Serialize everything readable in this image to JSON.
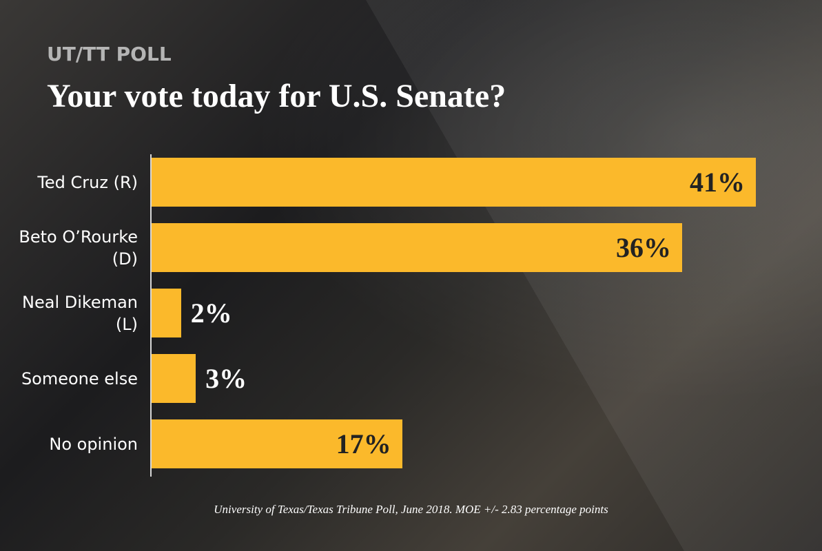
{
  "kicker": "UT/TT POLL",
  "chart_data": {
    "type": "bar",
    "orientation": "horizontal",
    "title": "Your vote today for U.S. Senate?",
    "categories": [
      "Ted Cruz (R)",
      "Beto O’Rourke (D)",
      "Neal Dikeman (L)",
      "Someone else",
      "No opinion"
    ],
    "values": [
      41,
      36,
      2,
      3,
      17
    ],
    "value_labels": [
      "41%",
      "36%",
      "2%",
      "3%",
      "17%"
    ],
    "color": "#fbb92b",
    "source": "University of Texas/Texas Tribune Poll, June 2018. MOE +/- 2.83 percentage points"
  }
}
